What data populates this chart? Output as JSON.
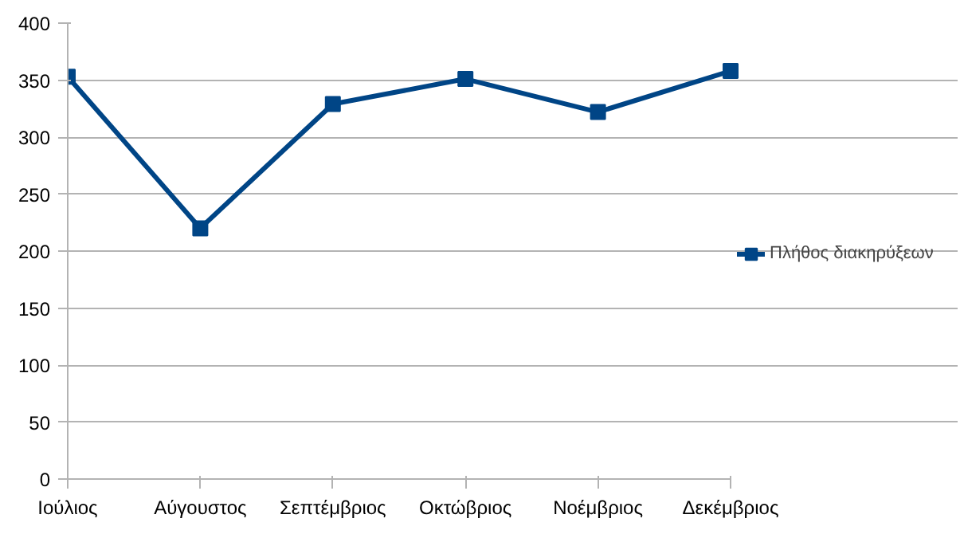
{
  "chart_data": {
    "type": "line",
    "categories": [
      "Ιούλιος",
      "Αύγουστος",
      "Σεπτέμβριος",
      "Οκτώβριος",
      "Νοέμβριος",
      "Δεκέμβριος"
    ],
    "series": [
      {
        "name": "Πλήθος διακηρύξεων",
        "color": "#004586",
        "values": [
          353,
          220,
          329,
          351,
          322,
          358
        ]
      }
    ],
    "ylim": [
      0,
      400
    ],
    "yticks": [
      0,
      50,
      100,
      150,
      200,
      250,
      300,
      350,
      400
    ],
    "grid": "y",
    "legend": "right",
    "marker": "square",
    "line_style": "solid"
  }
}
